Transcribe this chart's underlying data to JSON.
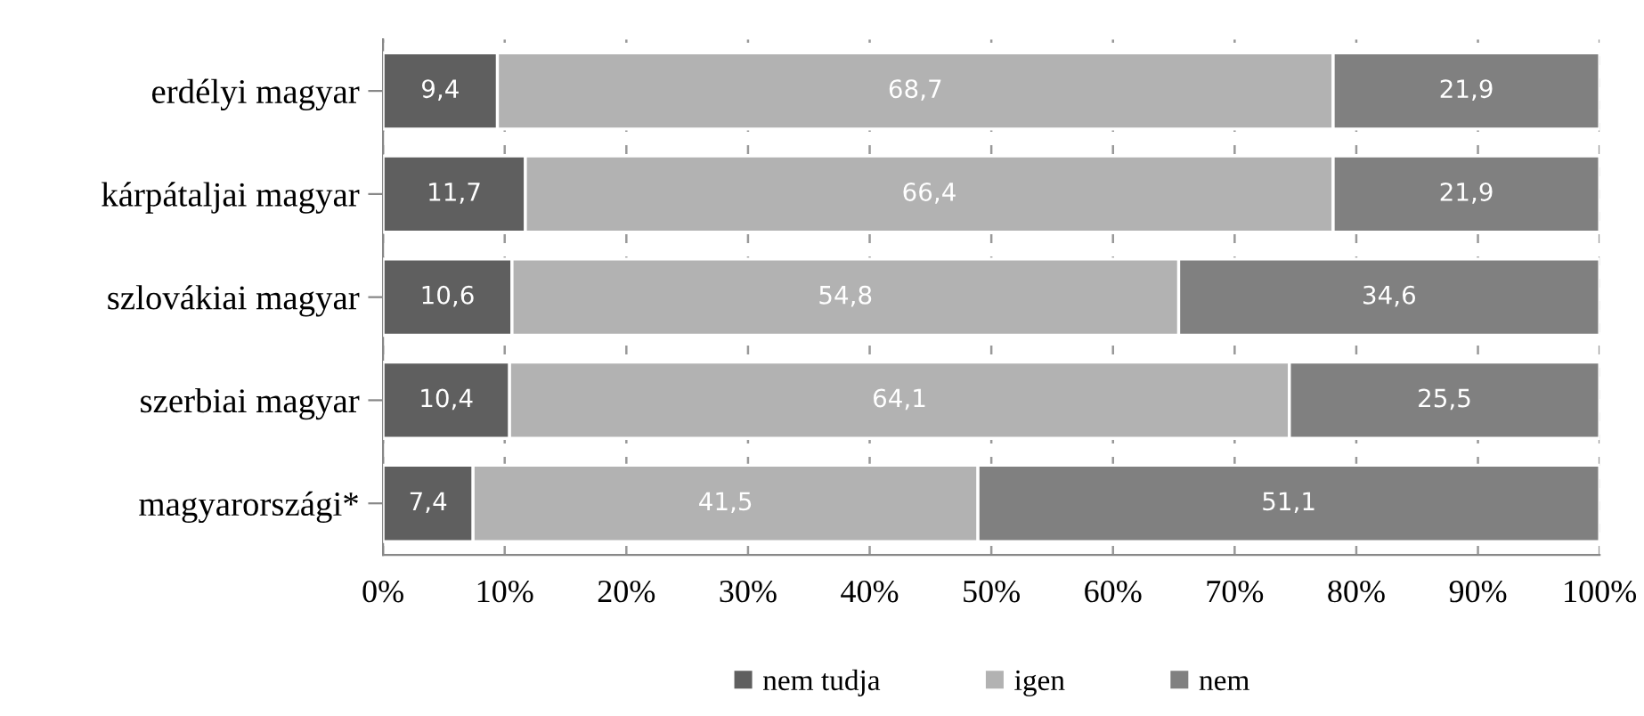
{
  "chart_data": {
    "type": "bar",
    "orientation": "horizontal",
    "stacked": true,
    "categories": [
      "erdélyi magyar",
      "kárpátaljai magyar",
      "szlovákiai magyar",
      "szerbiai magyar",
      "magyarországi*"
    ],
    "series": [
      {
        "name": "nem tudja",
        "color": "#5f5f5f",
        "values": [
          9.4,
          11.7,
          10.6,
          10.4,
          7.4
        ],
        "value_labels": [
          "9,4",
          "11,7",
          "10,6",
          "10,4",
          "7,4"
        ]
      },
      {
        "name": "igen",
        "color": "#b2b2b2",
        "values": [
          68.7,
          66.4,
          54.8,
          64.1,
          41.5
        ],
        "value_labels": [
          "68,7",
          "66,4",
          "54,8",
          "64,1",
          "41,5"
        ]
      },
      {
        "name": "nem",
        "color": "#808080",
        "values": [
          21.9,
          21.9,
          34.6,
          25.5,
          51.1
        ],
        "value_labels": [
          "21,9",
          "21,9",
          "34,6",
          "25,5",
          "51,1"
        ]
      }
    ],
    "xlim": [
      0,
      100
    ],
    "xticks": [
      {
        "value": 0,
        "label": "0%"
      },
      {
        "value": 10,
        "label": "10%"
      },
      {
        "value": 20,
        "label": "20%"
      },
      {
        "value": 30,
        "label": "30%"
      },
      {
        "value": 40,
        "label": "40%"
      },
      {
        "value": 50,
        "label": "50%"
      },
      {
        "value": 60,
        "label": "60%"
      },
      {
        "value": 70,
        "label": "70%"
      },
      {
        "value": 80,
        "label": "80%"
      },
      {
        "value": 90,
        "label": "90%"
      },
      {
        "value": 100,
        "label": "100%"
      }
    ],
    "grid": "x",
    "legend": "bottom"
  }
}
